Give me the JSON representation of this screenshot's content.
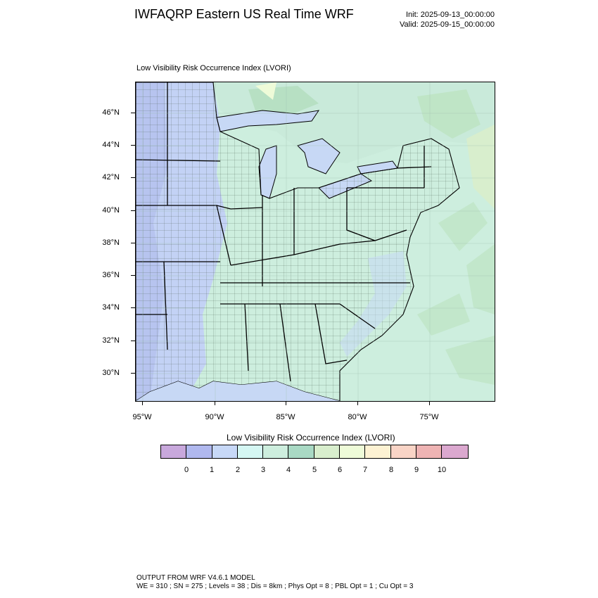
{
  "header": {
    "title": "IWFAQRP Eastern US Real Time WRF",
    "init": "Init: 2025-09-13_00:00:00",
    "valid": "Valid: 2025-09-15_00:00:00"
  },
  "map": {
    "subtitle": "Low Visibility Risk Occurrence Index   (LVORI)",
    "lat_labels": [
      "46°N",
      "44°N",
      "42°N",
      "40°N",
      "38°N",
      "36°N",
      "34°N",
      "32°N",
      "30°N"
    ],
    "lon_labels": [
      "95°W",
      "90°W",
      "85°W",
      "80°W",
      "75°W"
    ],
    "land_base_color": "#cdeede",
    "water_color": "#c7d8f5"
  },
  "colorbar": {
    "title": "Low Visibility Risk Occurrence Index  (LVORI)",
    "labels": [
      "0",
      "1",
      "2",
      "3",
      "4",
      "5",
      "6",
      "7",
      "8",
      "9",
      "10"
    ],
    "colors": [
      "#c8a8dc",
      "#b0b8ee",
      "#c7d8f7",
      "#d5f7f3",
      "#cdeede",
      "#a9d9c4",
      "#d8eecd",
      "#eefbd8",
      "#fdf2d3",
      "#f9d4c6",
      "#eeb3b3",
      "#dba8cf"
    ]
  },
  "footer": {
    "line1": "OUTPUT FROM WRF V4.6.1 MODEL",
    "line2": "WE = 310 ; SN = 275 ; Levels = 38 ; Dis = 8km ; Phys Opt = 8 ; PBL Opt = 1 ; Cu Opt = 3"
  }
}
